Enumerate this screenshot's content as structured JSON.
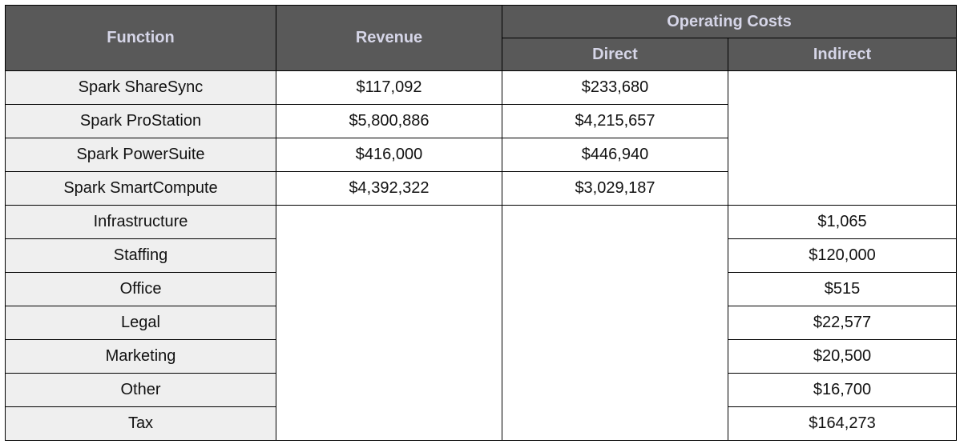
{
  "header": {
    "function": "Function",
    "revenue": "Revenue",
    "operating_costs": "Operating Costs",
    "direct": "Direct",
    "indirect": "Indirect"
  },
  "products": [
    {
      "function": "Spark ShareSync",
      "revenue": "$117,092",
      "direct": "$233,680"
    },
    {
      "function": "Spark ProStation",
      "revenue": "$5,800,886",
      "direct": "$4,215,657"
    },
    {
      "function": "Spark PowerSuite",
      "revenue": "$416,000",
      "direct": "$446,940"
    },
    {
      "function": "Spark SmartCompute",
      "revenue": "$4,392,322",
      "direct": "$3,029,187"
    }
  ],
  "overheads": [
    {
      "function": "Infrastructure",
      "indirect": "$1,065"
    },
    {
      "function": "Staffing",
      "indirect": "$120,000"
    },
    {
      "function": "Office",
      "indirect": "$515"
    },
    {
      "function": "Legal",
      "indirect": "$22,577"
    },
    {
      "function": "Marketing",
      "indirect": "$20,500"
    },
    {
      "function": "Other",
      "indirect": "$16,700"
    },
    {
      "function": "Tax",
      "indirect": "$164,273"
    }
  ]
}
